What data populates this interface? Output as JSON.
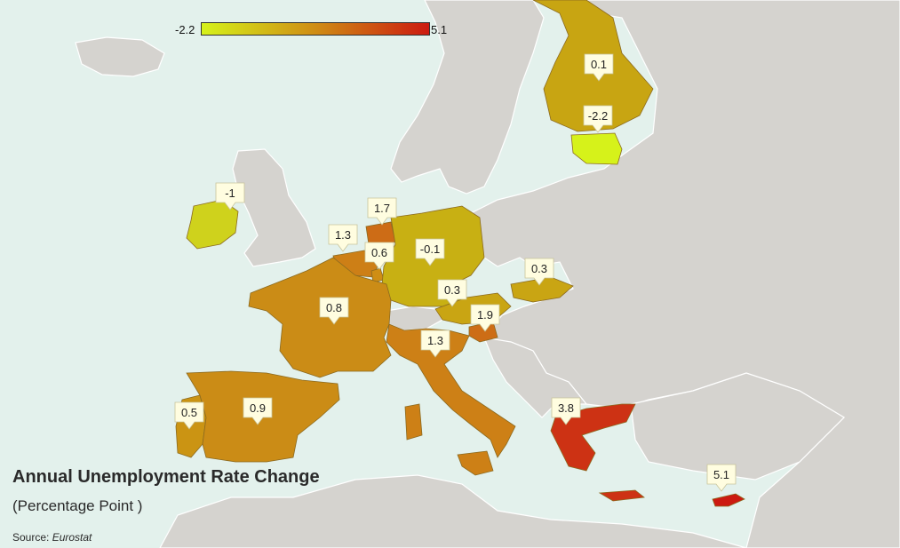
{
  "legend": {
    "min_label": "-2.2",
    "max_label": "5.1",
    "min_color": "#d6f21a",
    "max_color": "#cc1a10"
  },
  "title": "Annual Unemployment Rate Change",
  "subtitle": "(Percentage Point )",
  "source": {
    "prefix": "Source: ",
    "name": "Eurostat"
  },
  "colors": {
    "sea": "#e3f1ec",
    "non_eu_land": "#d5d3cf"
  },
  "regions": [
    {
      "id": "finland",
      "label": "0.1",
      "value": 0.1
    },
    {
      "id": "estonia",
      "label": "-2.2",
      "value": -2.2
    },
    {
      "id": "ireland",
      "label": "-1",
      "value": -1
    },
    {
      "id": "netherlands",
      "label": "1.7",
      "value": 1.7
    },
    {
      "id": "belgium",
      "label": "1.3",
      "value": 1.3
    },
    {
      "id": "luxembourg",
      "label": "0.6",
      "value": 0.6
    },
    {
      "id": "germany",
      "label": "-0.1",
      "value": -0.1
    },
    {
      "id": "slovakia",
      "label": "0.3",
      "value": 0.3
    },
    {
      "id": "austria",
      "label": "0.3",
      "value": 0.3
    },
    {
      "id": "slovenia",
      "label": "1.9",
      "value": 1.9
    },
    {
      "id": "france",
      "label": "0.8",
      "value": 0.8
    },
    {
      "id": "italy",
      "label": "1.3",
      "value": 1.3
    },
    {
      "id": "portugal",
      "label": "0.5",
      "value": 0.5
    },
    {
      "id": "spain",
      "label": "0.9",
      "value": 0.9
    },
    {
      "id": "greece",
      "label": "3.8",
      "value": 3.8
    },
    {
      "id": "cyprus",
      "label": "5.1",
      "value": 5.1
    }
  ]
}
